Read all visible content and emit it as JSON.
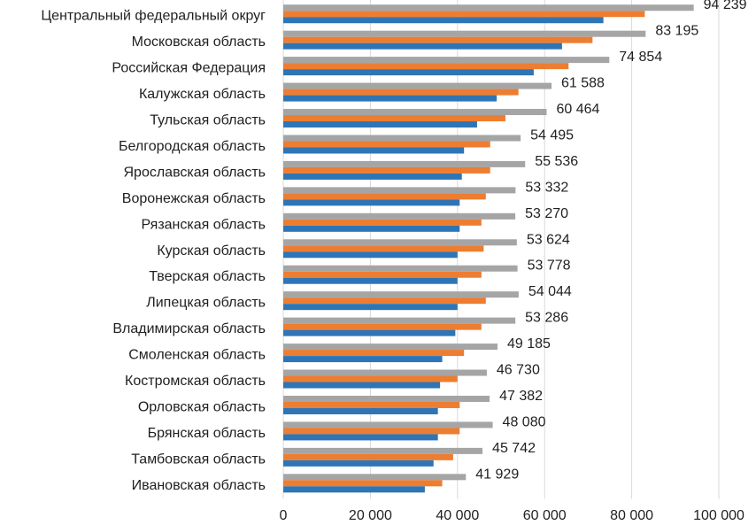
{
  "chart_data": {
    "type": "bar",
    "orientation": "horizontal",
    "categories": [
      "Центральный федеральный округ",
      "Московская область",
      "Российская Федерация",
      "Калужская область",
      "Тульская область",
      "Белгородская область",
      "Ярославская область",
      "Воронежская область",
      "Рязанская область",
      "Курская область",
      "Тверская область",
      "Липецкая область",
      "Владимирская область",
      "Смоленская область",
      "Костромская область",
      "Орловская область",
      "Брянская область",
      "Тамбовская область",
      "Ивановская область"
    ],
    "series": [
      {
        "color": "#a5a5a5",
        "values": [
          94239,
          83195,
          74854,
          61588,
          60464,
          54495,
          55536,
          53332,
          53270,
          53624,
          53778,
          54044,
          53286,
          49185,
          46730,
          47382,
          48080,
          45742,
          41929
        ],
        "data_labels": [
          "94 239",
          "83 195",
          "74 854",
          "61 588",
          "60 464",
          "54 495",
          "55 536",
          "53 332",
          "53 270",
          "53 624",
          "53 778",
          "54 044",
          "53 286",
          "49 185",
          "46 730",
          "47 382",
          "48 080",
          "45 742",
          "41 929"
        ]
      },
      {
        "color": "#ed7d31",
        "values": [
          83000,
          71000,
          65500,
          54000,
          51000,
          47500,
          47500,
          46500,
          45500,
          46000,
          45500,
          46500,
          45500,
          41500,
          40000,
          40500,
          40500,
          39000,
          36500
        ]
      },
      {
        "color": "#2e75b6",
        "values": [
          73500,
          64000,
          57500,
          49000,
          44500,
          41500,
          41000,
          40500,
          40500,
          40000,
          40000,
          40000,
          39500,
          36500,
          36000,
          35500,
          35500,
          34500,
          32500
        ]
      }
    ],
    "x_ticks": [
      0,
      20000,
      40000,
      60000,
      80000,
      100000
    ],
    "x_tick_labels": [
      "0",
      "20 000",
      "40 000",
      "60 000",
      "80 000",
      "100 000"
    ],
    "xlim": [
      0,
      100000
    ],
    "title": "",
    "xlabel": "",
    "ylabel": "",
    "grid": "vertical",
    "legend": "none"
  }
}
